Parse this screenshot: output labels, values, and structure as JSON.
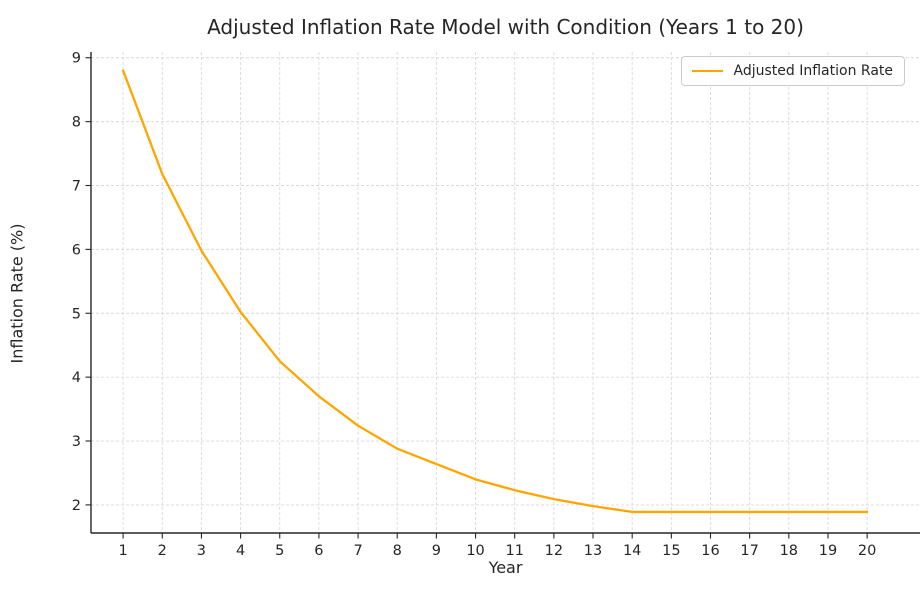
{
  "title": "Adjusted Inflation Rate Model with Condition (Years 1 to 20)",
  "legend": {
    "items": [
      {
        "label": "Adjusted Inflation Rate",
        "color": "#FFA500"
      }
    ],
    "position": "upper right"
  },
  "colors": {
    "line": "#FFA500",
    "grid": "#d9d9d9",
    "spine": "#262626",
    "text": "#262626",
    "legend_border": "#cccccc",
    "background": "#ffffff"
  },
  "chart_data": {
    "type": "line",
    "title": "Adjusted Inflation Rate Model with Condition (Years 1 to 20)",
    "xlabel": "Year",
    "ylabel": "Inflation Rate (%)",
    "x": [
      1,
      2,
      3,
      4,
      5,
      6,
      7,
      8,
      9,
      10,
      11,
      12,
      13,
      14,
      15,
      16,
      17,
      18,
      19,
      20
    ],
    "series": [
      {
        "name": "Adjusted Inflation Rate",
        "color": "#FFA500",
        "values": [
          8.8,
          7.18,
          5.98,
          5.02,
          4.25,
          3.7,
          3.24,
          2.88,
          2.64,
          2.4,
          2.23,
          2.09,
          1.98,
          1.89,
          1.89,
          1.89,
          1.89,
          1.89,
          1.89,
          1.89
        ]
      }
    ],
    "xticks": [
      1,
      2,
      3,
      4,
      5,
      6,
      7,
      8,
      9,
      10,
      11,
      12,
      13,
      14,
      15,
      16,
      17,
      18,
      19,
      20
    ],
    "yticks": [
      2,
      3,
      4,
      5,
      6,
      7,
      8,
      9
    ],
    "xlim": [
      0.18,
      21.35
    ],
    "ylim": [
      1.56,
      9.09
    ],
    "grid": {
      "visible": true,
      "style": "dashed"
    },
    "legend_position": "upper right",
    "spines": {
      "top": false,
      "right": false,
      "left": true,
      "bottom": true
    }
  }
}
